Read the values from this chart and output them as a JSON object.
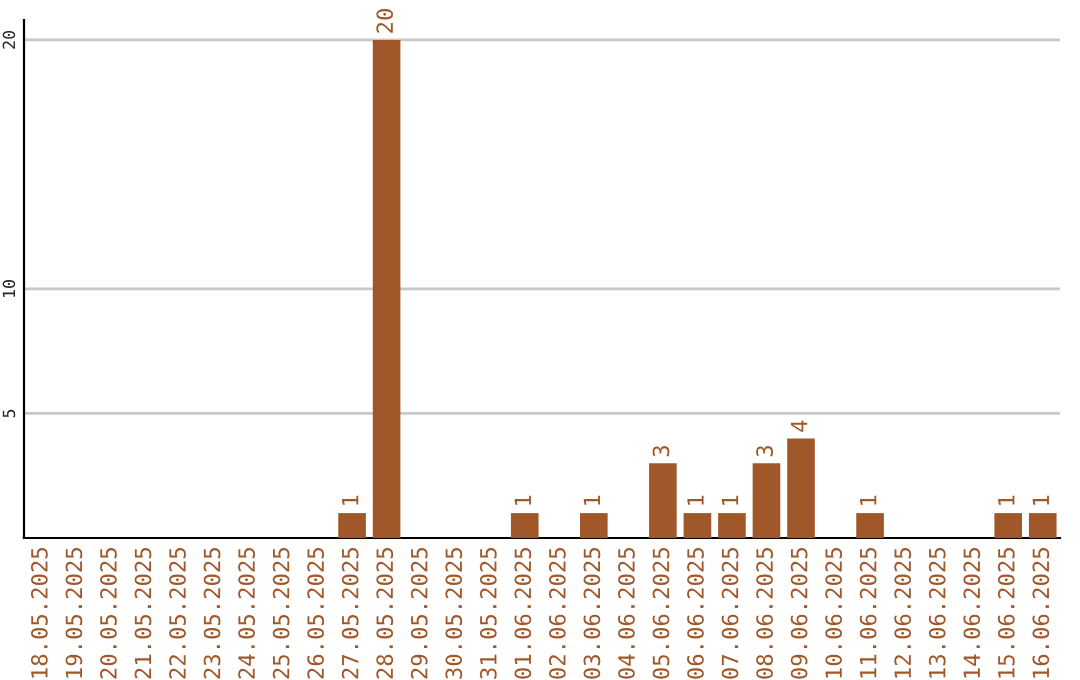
{
  "chart_data": {
    "type": "bar",
    "categories": [
      "18.05.2025",
      "19.05.2025",
      "20.05.2025",
      "21.05.2025",
      "22.05.2025",
      "23.05.2025",
      "24.05.2025",
      "25.05.2025",
      "26.05.2025",
      "27.05.2025",
      "28.05.2025",
      "29.05.2025",
      "30.05.2025",
      "31.05.2025",
      "01.06.2025",
      "02.06.2025",
      "03.06.2025",
      "04.06.2025",
      "05.06.2025",
      "06.06.2025",
      "07.06.2025",
      "08.06.2025",
      "09.06.2025",
      "10.06.2025",
      "11.06.2025",
      "12.06.2025",
      "13.06.2025",
      "14.06.2025",
      "15.06.2025",
      "16.06.2025"
    ],
    "values": [
      0,
      0,
      0,
      0,
      0,
      0,
      0,
      0,
      0,
      1,
      20,
      0,
      0,
      0,
      1,
      0,
      1,
      0,
      3,
      1,
      1,
      3,
      4,
      0,
      1,
      0,
      0,
      0,
      1,
      1
    ],
    "value_labels": [
      null,
      null,
      null,
      null,
      null,
      null,
      null,
      null,
      null,
      "1",
      "20",
      null,
      null,
      null,
      "1",
      null,
      "1",
      null,
      "3",
      "1",
      "1",
      "3",
      "4",
      null,
      "1",
      null,
      null,
      null,
      "1",
      "1"
    ],
    "color": "#a0582a",
    "ylim": [
      0,
      20.8
    ],
    "yticks": [
      5,
      10,
      20
    ],
    "grid": "y"
  }
}
